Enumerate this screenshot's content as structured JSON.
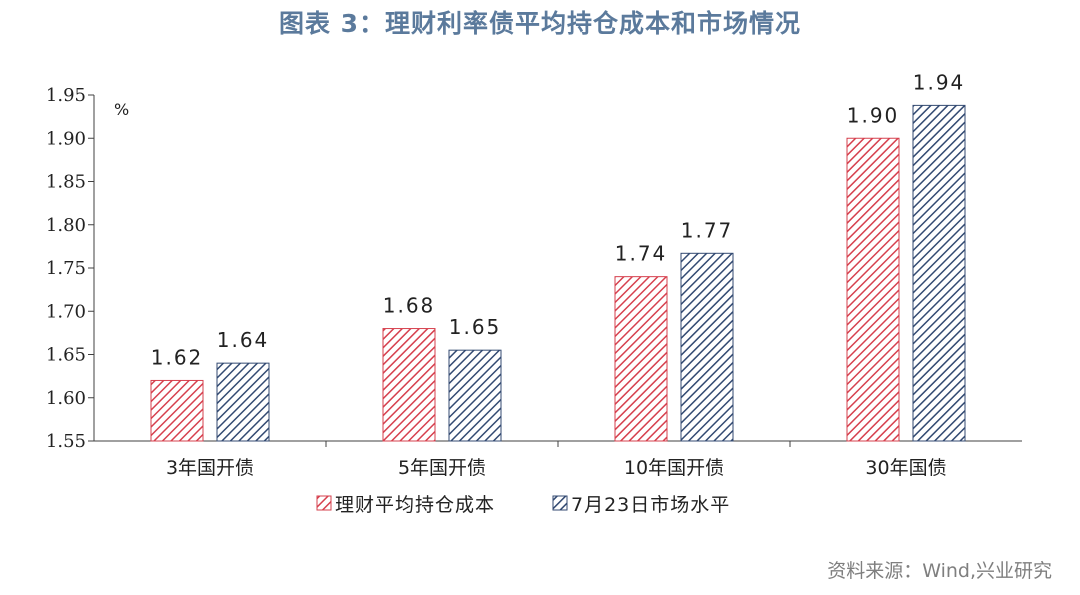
{
  "title": "图表 3：理财利率债平均持仓成本和市场情况",
  "source": "资料来源：Wind,兴业研究",
  "colors": {
    "series1": "#d6404e",
    "series2": "#334a72",
    "axis": "#404040",
    "title": "#5b7a9c"
  },
  "chart_data": {
    "type": "bar",
    "unit": "%",
    "categories": [
      "3年国开债",
      "5年国开债",
      "10年国开债",
      "30年国债"
    ],
    "series": [
      {
        "name": "理财平均持仓成本",
        "values": [
          1.62,
          1.68,
          1.74,
          1.9
        ],
        "labels": [
          "1.62",
          "1.68",
          "1.74",
          "1.90"
        ],
        "pattern": "diagonal-hatch-red"
      },
      {
        "name": "7月23日市场水平",
        "values": [
          1.64,
          1.655,
          1.767,
          1.938
        ],
        "labels": [
          "1.64",
          "1.65",
          "1.77",
          "1.94"
        ],
        "pattern": "diagonal-hatch-navy"
      }
    ],
    "ylim": [
      1.55,
      1.95
    ],
    "yticks": [
      "1.55",
      "1.60",
      "1.65",
      "1.70",
      "1.75",
      "1.80",
      "1.85",
      "1.90",
      "1.95"
    ],
    "grid": false,
    "legend_position": "bottom"
  }
}
